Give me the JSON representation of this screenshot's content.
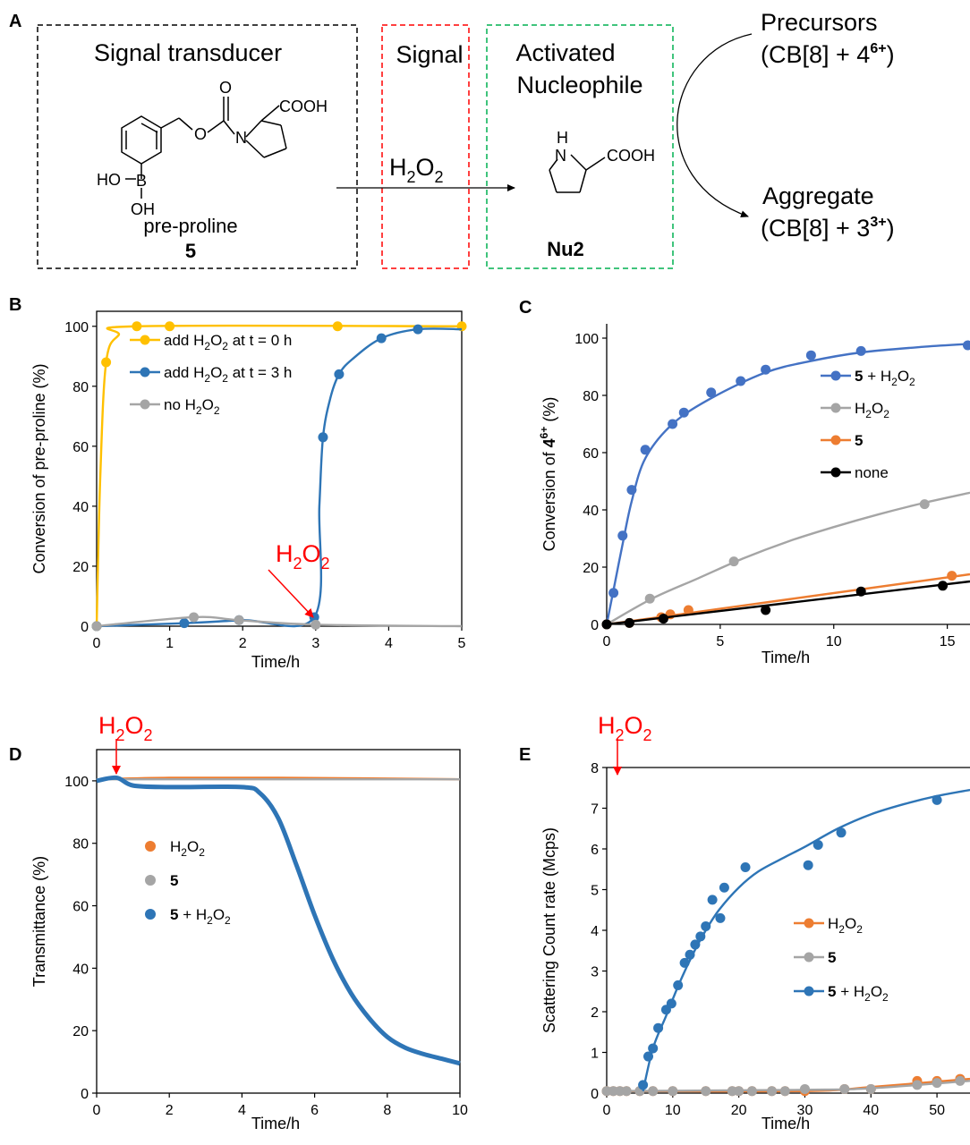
{
  "colors": {
    "yellow": "#ffc000",
    "blue": "#2e75b6",
    "lightblue": "#4472c4",
    "gray": "#a5a5a5",
    "orange": "#ed7d31",
    "black": "#000000",
    "red": "#ff0000"
  },
  "panel_a": {
    "label": "A",
    "signal_transducer": "Signal transducer",
    "signal": "Signal",
    "activated": [
      "Activated",
      "Nucleophile"
    ],
    "reagent": "H2O2",
    "compound_name": "pre-proline",
    "compound_number": "5",
    "nucleophile": "Nu2",
    "cooh": "COOH",
    "ho": "HO",
    "b": "B",
    "oh": "OH",
    "o_carbonyl": "O",
    "o_ester": "O",
    "n": "N",
    "nh_h": "H",
    "nh_n": "N",
    "precursors": "Precursors",
    "precursors_formula": "(CB[8] + 4",
    "precursors_charge": "6+",
    "aggregate": "Aggregate",
    "aggregate_formula": "(CB[8] + 3",
    "aggregate_charge": "3+"
  },
  "chart_data": [
    {
      "panel": "B",
      "type": "line",
      "xlabel": "Time/h",
      "ylabel": "Conversion of pre-proline (%)",
      "xlim": [
        0,
        5
      ],
      "ylim": [
        0,
        105
      ],
      "xticks": [
        0,
        1,
        2,
        3,
        4,
        5
      ],
      "yticks": [
        0,
        20,
        40,
        60,
        80,
        100
      ],
      "annotation": "H2O2",
      "annotation_x": 3,
      "legend_position": "top-left",
      "series": [
        {
          "name": "add H2O2 at t = 0 h",
          "color": "#ffc000",
          "points": [
            [
              0,
              0
            ],
            [
              0.13,
              88
            ],
            [
              0.55,
              100
            ],
            [
              1.0,
              100
            ],
            [
              3.3,
              100
            ],
            [
              5.0,
              100
            ]
          ],
          "curve": [
            [
              0,
              0
            ],
            [
              0.05,
              50
            ],
            [
              0.13,
              88
            ],
            [
              0.3,
              97
            ],
            [
              0.55,
              100
            ],
            [
              5,
              100
            ]
          ]
        },
        {
          "name": "add H2O2 at t = 3 h",
          "color": "#2e75b6",
          "points": [
            [
              0,
              0
            ],
            [
              1.2,
              1
            ],
            [
              1.95,
              2
            ],
            [
              2.98,
              3
            ],
            [
              3.1,
              63
            ],
            [
              3.32,
              84
            ],
            [
              3.9,
              96
            ],
            [
              4.4,
              99
            ]
          ],
          "curve": [
            [
              0,
              0
            ],
            [
              1.2,
              1
            ],
            [
              2,
              2
            ],
            [
              2.98,
              3
            ],
            [
              3.05,
              40
            ],
            [
              3.1,
              63
            ],
            [
              3.2,
              76
            ],
            [
              3.32,
              84
            ],
            [
              3.5,
              89
            ],
            [
              3.9,
              96
            ],
            [
              4.4,
              99
            ],
            [
              5,
              99
            ]
          ]
        },
        {
          "name": "no H2O2",
          "color": "#a5a5a5",
          "points": [
            [
              0,
              0
            ],
            [
              1.33,
              3
            ],
            [
              1.95,
              2
            ],
            [
              3.0,
              0.5
            ]
          ],
          "curve": [
            [
              0,
              0
            ],
            [
              1.33,
              3
            ],
            [
              1.95,
              2
            ],
            [
              3.0,
              0.5
            ],
            [
              5,
              0
            ]
          ]
        }
      ]
    },
    {
      "panel": "C",
      "type": "line",
      "xlabel": "Time/h",
      "ylabel": "Conversion of 4",
      "ylabel_sup": "6+",
      "ylabel_unit": "(%)",
      "xlim": [
        0,
        16
      ],
      "ylim": [
        0,
        105
      ],
      "xticks": [
        0,
        5,
        10,
        15
      ],
      "yticks": [
        0,
        20,
        40,
        60,
        80,
        100
      ],
      "legend_position": "top-right",
      "series": [
        {
          "name": "5 + H2O2",
          "color": "#4472c4",
          "points": [
            [
              0,
              0
            ],
            [
              0.3,
              11
            ],
            [
              0.7,
              31
            ],
            [
              1.1,
              47
            ],
            [
              1.7,
              61
            ],
            [
              2.9,
              70
            ],
            [
              3.4,
              74
            ],
            [
              4.6,
              81
            ],
            [
              5.9,
              85
            ],
            [
              7.0,
              89
            ],
            [
              9.0,
              94
            ],
            [
              11.2,
              95.5
            ],
            [
              15.9,
              97.5
            ]
          ],
          "curve": [
            [
              0,
              0
            ],
            [
              0.3,
              12
            ],
            [
              0.7,
              28
            ],
            [
              1.1,
              43
            ],
            [
              1.7,
              58
            ],
            [
              2.9,
              70
            ],
            [
              4.6,
              79
            ],
            [
              7.0,
              88
            ],
            [
              9.0,
              92
            ],
            [
              11.2,
              95
            ],
            [
              14,
              97
            ],
            [
              16,
              98
            ]
          ]
        },
        {
          "name": "H2O2",
          "color": "#a5a5a5",
          "points": [
            [
              0,
              0
            ],
            [
              1.9,
              9
            ],
            [
              5.6,
              22
            ],
            [
              14.0,
              42
            ]
          ],
          "curve": [
            [
              0,
              0
            ],
            [
              2,
              9
            ],
            [
              4,
              16
            ],
            [
              6,
              23
            ],
            [
              8,
              29
            ],
            [
              10,
              34
            ],
            [
              12,
              38.5
            ],
            [
              14,
              42.5
            ],
            [
              16,
              46
            ]
          ]
        },
        {
          "name": "5",
          "color": "#ed7d31",
          "points": [
            [
              0,
              0
            ],
            [
              1.0,
              0.5
            ],
            [
              2.4,
              2.5
            ],
            [
              2.8,
              3.5
            ],
            [
              3.6,
              5
            ],
            [
              15.2,
              17
            ]
          ],
          "curve": [
            [
              0,
              0
            ],
            [
              16,
              17.5
            ]
          ]
        },
        {
          "name": "none",
          "color": "#000000",
          "points": [
            [
              0,
              0
            ],
            [
              1.0,
              0.5
            ],
            [
              2.5,
              2
            ],
            [
              7.0,
              5
            ],
            [
              11.2,
              11.5
            ],
            [
              14.8,
              13.5
            ]
          ],
          "curve": [
            [
              0,
              0
            ],
            [
              16,
              15
            ]
          ]
        }
      ]
    },
    {
      "panel": "D",
      "type": "line",
      "xlabel": "Time/h",
      "ylabel": "Transmittance (%)",
      "xlim": [
        0,
        10
      ],
      "ylim": [
        0,
        110
      ],
      "xticks": [
        0,
        2,
        4,
        6,
        8,
        10
      ],
      "yticks": [
        0,
        20,
        40,
        60,
        80,
        100
      ],
      "annotation": "H2O2",
      "annotation_x": 0.6,
      "legend_position": "center-left",
      "series": [
        {
          "name": "H2O2",
          "color": "#ed7d31",
          "curve": [
            [
              0,
              100.5
            ],
            [
              2,
              101
            ],
            [
              5,
              101
            ],
            [
              10,
              100.5
            ]
          ]
        },
        {
          "name": "5",
          "color": "#a5a5a5",
          "curve": [
            [
              0,
              100.5
            ],
            [
              10,
              100.5
            ]
          ]
        },
        {
          "name": "5 + H2O2",
          "color": "#2e75b6",
          "curve": [
            [
              0,
              100
            ],
            [
              0.55,
              101
            ],
            [
              1.0,
              98.5
            ],
            [
              2.0,
              98
            ],
            [
              4.0,
              98
            ],
            [
              4.5,
              96
            ],
            [
              5.0,
              88
            ],
            [
              5.5,
              73
            ],
            [
              6.0,
              57
            ],
            [
              6.5,
              43
            ],
            [
              7.0,
              32
            ],
            [
              7.5,
              24
            ],
            [
              8.0,
              18
            ],
            [
              8.5,
              14.5
            ],
            [
              9.0,
              12.5
            ],
            [
              9.5,
              11
            ],
            [
              10.0,
              9.5
            ]
          ]
        }
      ]
    },
    {
      "panel": "E",
      "type": "line",
      "xlabel": "Time/h",
      "ylabel": "Scattering Count rate (Mcps)",
      "xlim": [
        0,
        55
      ],
      "ylim": [
        0,
        8
      ],
      "xticks": [
        0,
        10,
        20,
        30,
        40,
        50
      ],
      "yticks": [
        0,
        1,
        2,
        3,
        4,
        5,
        6,
        7,
        8
      ],
      "annotation": "H2O2",
      "annotation_x": 1.5,
      "legend_position": "center-right",
      "series": [
        {
          "name": "H2O2",
          "color": "#ed7d31",
          "points": [
            [
              0,
              0.05
            ],
            [
              1,
              0.05
            ],
            [
              2,
              0.05
            ],
            [
              3,
              0.05
            ],
            [
              5,
              0.05
            ],
            [
              7,
              0.05
            ],
            [
              10,
              0.05
            ],
            [
              15,
              0.05
            ],
            [
              19,
              0.05
            ],
            [
              20,
              0.05
            ],
            [
              22,
              0.05
            ],
            [
              25,
              0.05
            ],
            [
              27,
              0.05
            ],
            [
              30,
              0.05
            ],
            [
              36,
              0.1
            ],
            [
              40,
              0.1
            ],
            [
              47,
              0.3
            ],
            [
              50,
              0.3
            ],
            [
              53.5,
              0.35
            ]
          ],
          "curve": [
            [
              0,
              0.05
            ],
            [
              30,
              0.05
            ],
            [
              40,
              0.15
            ],
            [
              55,
              0.35
            ]
          ]
        },
        {
          "name": "5",
          "color": "#a5a5a5",
          "points": [
            [
              0,
              0.05
            ],
            [
              1,
              0.05
            ],
            [
              2,
              0.05
            ],
            [
              3,
              0.05
            ],
            [
              5,
              0.05
            ],
            [
              7,
              0.05
            ],
            [
              10,
              0.05
            ],
            [
              15,
              0.05
            ],
            [
              19,
              0.05
            ],
            [
              20,
              0.05
            ],
            [
              22,
              0.05
            ],
            [
              25,
              0.05
            ],
            [
              27,
              0.05
            ],
            [
              30,
              0.1
            ],
            [
              36,
              0.1
            ],
            [
              40,
              0.1
            ],
            [
              47,
              0.2
            ],
            [
              50,
              0.25
            ],
            [
              53.5,
              0.3
            ]
          ],
          "curve": [
            [
              0,
              0.05
            ],
            [
              30,
              0.08
            ],
            [
              40,
              0.12
            ],
            [
              55,
              0.3
            ]
          ]
        },
        {
          "name": "5 + H2O2",
          "color": "#2e75b6",
          "points": [
            [
              5.5,
              0.2
            ],
            [
              6.3,
              0.9
            ],
            [
              7.0,
              1.1
            ],
            [
              7.8,
              1.6
            ],
            [
              9.0,
              2.05
            ],
            [
              9.8,
              2.2
            ],
            [
              10.8,
              2.65
            ],
            [
              11.8,
              3.2
            ],
            [
              12.6,
              3.4
            ],
            [
              13.4,
              3.65
            ],
            [
              14.2,
              3.85
            ],
            [
              15.0,
              4.1
            ],
            [
              16.0,
              4.75
            ],
            [
              17.2,
              4.3
            ],
            [
              17.8,
              5.05
            ],
            [
              21.0,
              5.55
            ],
            [
              30.5,
              5.6
            ],
            [
              32.0,
              6.1
            ],
            [
              35.5,
              6.4
            ],
            [
              50.0,
              7.2
            ]
          ],
          "curve": [
            [
              5.5,
              0.05
            ],
            [
              7,
              1.1
            ],
            [
              9,
              1.9
            ],
            [
              11,
              2.7
            ],
            [
              13,
              3.4
            ],
            [
              15,
              4.0
            ],
            [
              17,
              4.5
            ],
            [
              20,
              5.05
            ],
            [
              23,
              5.45
            ],
            [
              27,
              5.8
            ],
            [
              30,
              6.05
            ],
            [
              35,
              6.5
            ],
            [
              40,
              6.85
            ],
            [
              45,
              7.1
            ],
            [
              50,
              7.3
            ],
            [
              55,
              7.45
            ]
          ]
        }
      ]
    }
  ]
}
